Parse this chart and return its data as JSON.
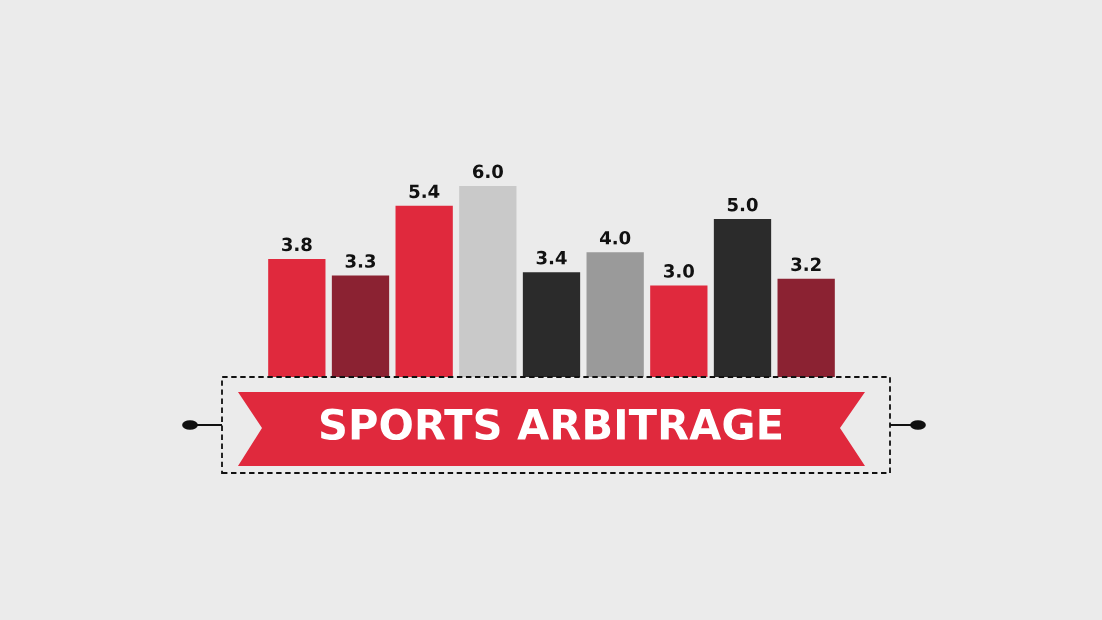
{
  "chart_data": {
    "type": "bar",
    "title": "SPORTS ARBITRAGE",
    "categories": [
      null,
      null,
      null,
      null,
      null,
      null,
      null,
      null,
      null
    ],
    "values": [
      3.8,
      3.3,
      5.4,
      6.0,
      3.4,
      4.0,
      3.0,
      5.0,
      3.2
    ],
    "colors": [
      "#e0293d",
      "#8b2232",
      "#e0293d",
      "#c9c9c9",
      "#2b2b2b",
      "#9a9a9a",
      "#e0293d",
      "#2b2b2b",
      "#8b2232"
    ],
    "value_labels": [
      "3.8",
      "3.3",
      "5.4",
      "6.0",
      "3.4",
      "4.0",
      "3.0",
      "5.0",
      "3.2"
    ]
  }
}
